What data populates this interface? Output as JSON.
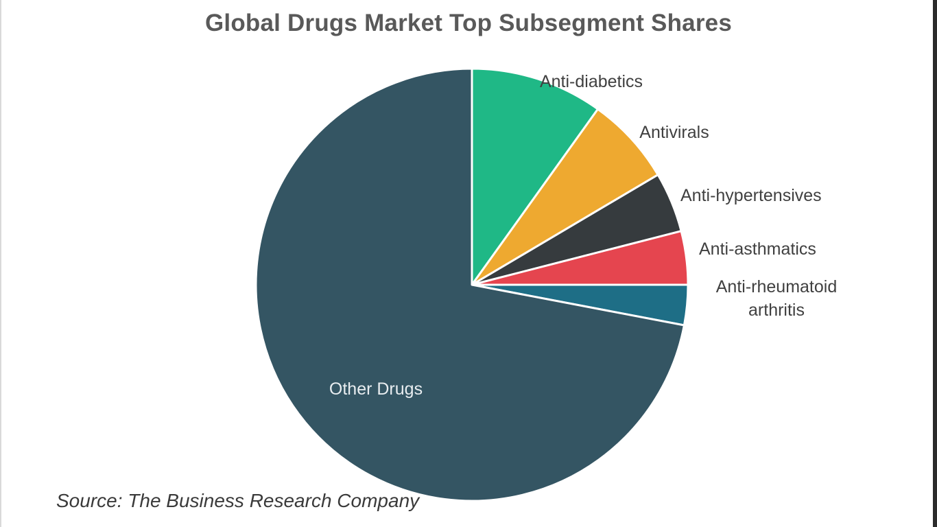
{
  "chart_data": {
    "type": "pie",
    "title": "Global Drugs Market Top Subsegment Shares",
    "start_angle_deg": 0,
    "direction": "clockwise",
    "slices": [
      {
        "label": "Anti-diabetics",
        "label_lines": [
          "Anti-diabetics"
        ],
        "value": 9.9,
        "color": "#1fb886",
        "label_position": "outside"
      },
      {
        "label": "Antivirals",
        "label_lines": [
          "Antivirals"
        ],
        "value": 6.6,
        "color": "#eea930",
        "label_position": "outside"
      },
      {
        "label": "Anti-hypertensives",
        "label_lines": [
          "Anti-hypertensives"
        ],
        "value": 4.5,
        "color": "#363b3e",
        "label_position": "outside"
      },
      {
        "label": "Anti-asthmatics",
        "label_lines": [
          "Anti-asthmatics"
        ],
        "value": 4.0,
        "color": "#e5454f",
        "label_position": "outside"
      },
      {
        "label": "Anti-rheumatoid arthritis",
        "label_lines": [
          "Anti-rheumatoid",
          "arthritis"
        ],
        "value": 3.0,
        "color": "#1e6e86",
        "label_position": "outside"
      },
      {
        "label": "Other Drugs",
        "label_lines": [
          "Other Drugs"
        ],
        "value": 72.0,
        "color": "#345563",
        "label_position": "inside"
      }
    ]
  },
  "source": "Source: The Business Research Company"
}
